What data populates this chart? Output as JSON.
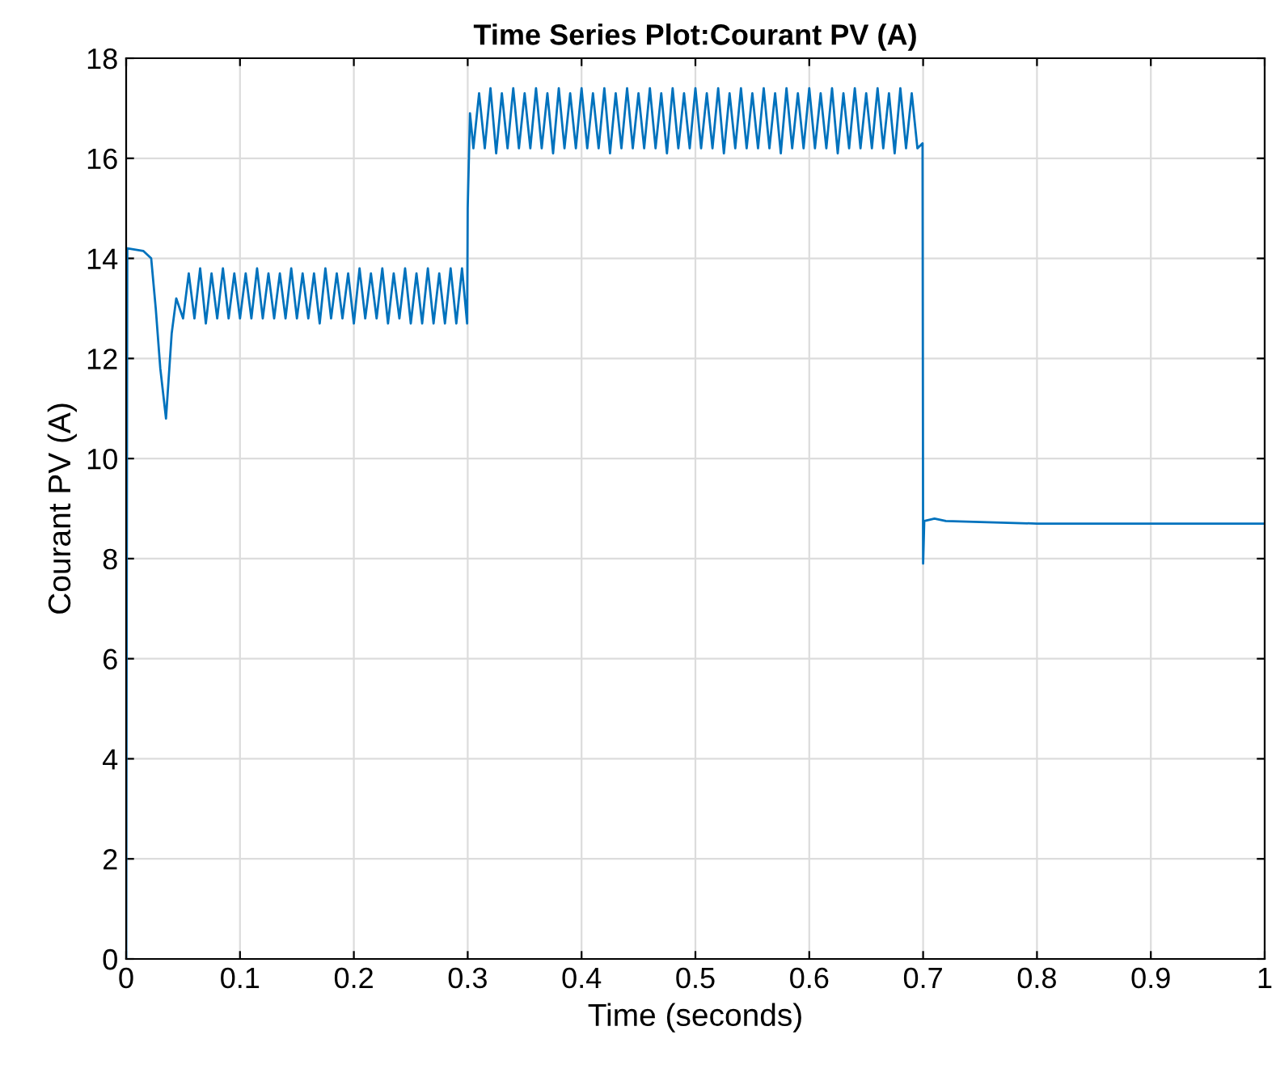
{
  "chart_data": {
    "type": "line",
    "title": "Time Series Plot:Courant PV (A)",
    "xlabel": "Time (seconds)",
    "ylabel": "Courant PV (A)",
    "x": [
      0,
      0.001,
      0.015,
      0.022,
      0.026,
      0.03,
      0.035,
      0.04,
      0.044,
      0.05,
      0.055,
      0.06,
      0.065,
      0.07,
      0.075,
      0.08,
      0.085,
      0.09,
      0.095,
      0.1,
      0.105,
      0.11,
      0.115,
      0.12,
      0.125,
      0.13,
      0.135,
      0.14,
      0.145,
      0.15,
      0.155,
      0.16,
      0.165,
      0.17,
      0.175,
      0.18,
      0.185,
      0.19,
      0.195,
      0.2,
      0.205,
      0.21,
      0.215,
      0.22,
      0.225,
      0.23,
      0.235,
      0.24,
      0.245,
      0.25,
      0.255,
      0.26,
      0.265,
      0.27,
      0.275,
      0.28,
      0.285,
      0.29,
      0.295,
      0.2995,
      0.3,
      0.302,
      0.305,
      0.31,
      0.315,
      0.32,
      0.325,
      0.33,
      0.335,
      0.34,
      0.345,
      0.35,
      0.355,
      0.36,
      0.365,
      0.37,
      0.375,
      0.38,
      0.385,
      0.39,
      0.395,
      0.4,
      0.405,
      0.41,
      0.415,
      0.42,
      0.425,
      0.43,
      0.435,
      0.44,
      0.445,
      0.45,
      0.455,
      0.46,
      0.465,
      0.47,
      0.475,
      0.48,
      0.485,
      0.49,
      0.495,
      0.5,
      0.505,
      0.51,
      0.515,
      0.52,
      0.525,
      0.53,
      0.535,
      0.54,
      0.545,
      0.55,
      0.555,
      0.56,
      0.565,
      0.57,
      0.575,
      0.58,
      0.585,
      0.59,
      0.595,
      0.6,
      0.605,
      0.61,
      0.615,
      0.62,
      0.625,
      0.63,
      0.635,
      0.64,
      0.645,
      0.65,
      0.655,
      0.66,
      0.665,
      0.67,
      0.675,
      0.68,
      0.685,
      0.69,
      0.695,
      0.6995,
      0.7,
      0.701,
      0.71,
      0.72,
      0.8,
      1.0
    ],
    "series": [
      {
        "color": "#0072bd",
        "values": [
          0,
          14.2,
          14.15,
          14.0,
          13.0,
          11.8,
          10.8,
          12.5,
          13.2,
          12.8,
          13.7,
          12.8,
          13.8,
          12.7,
          13.7,
          12.8,
          13.8,
          12.8,
          13.7,
          12.8,
          13.7,
          12.8,
          13.8,
          12.8,
          13.7,
          12.8,
          13.7,
          12.8,
          13.8,
          12.8,
          13.7,
          12.8,
          13.7,
          12.7,
          13.8,
          12.8,
          13.7,
          12.8,
          13.7,
          12.7,
          13.8,
          12.8,
          13.7,
          12.8,
          13.8,
          12.7,
          13.7,
          12.8,
          13.8,
          12.7,
          13.7,
          12.7,
          13.8,
          12.7,
          13.7,
          12.7,
          13.8,
          12.7,
          13.8,
          12.7,
          15.0,
          16.9,
          16.2,
          17.3,
          16.2,
          17.4,
          16.1,
          17.3,
          16.2,
          17.4,
          16.2,
          17.3,
          16.2,
          17.4,
          16.2,
          17.3,
          16.1,
          17.4,
          16.2,
          17.3,
          16.2,
          17.4,
          16.2,
          17.3,
          16.2,
          17.4,
          16.1,
          17.3,
          16.2,
          17.4,
          16.2,
          17.3,
          16.2,
          17.4,
          16.2,
          17.3,
          16.1,
          17.4,
          16.2,
          17.3,
          16.2,
          17.4,
          16.2,
          17.3,
          16.2,
          17.4,
          16.1,
          17.3,
          16.2,
          17.4,
          16.2,
          17.3,
          16.2,
          17.4,
          16.2,
          17.3,
          16.1,
          17.4,
          16.2,
          17.3,
          16.2,
          17.4,
          16.2,
          17.3,
          16.2,
          17.4,
          16.1,
          17.3,
          16.2,
          17.4,
          16.2,
          17.3,
          16.2,
          17.4,
          16.2,
          17.3,
          16.1,
          17.4,
          16.2,
          17.3,
          16.2,
          16.3,
          7.9,
          8.75,
          8.8,
          8.75,
          8.7,
          8.7
        ]
      }
    ],
    "xlim": [
      0,
      1
    ],
    "ylim": [
      0,
      18
    ],
    "xticks": [
      0,
      0.1,
      0.2,
      0.3,
      0.4,
      0.5,
      0.6,
      0.7,
      0.8,
      0.9,
      1
    ],
    "yticks": [
      0,
      2,
      4,
      6,
      8,
      10,
      12,
      14,
      16,
      18
    ],
    "grid": true,
    "legend": false
  }
}
